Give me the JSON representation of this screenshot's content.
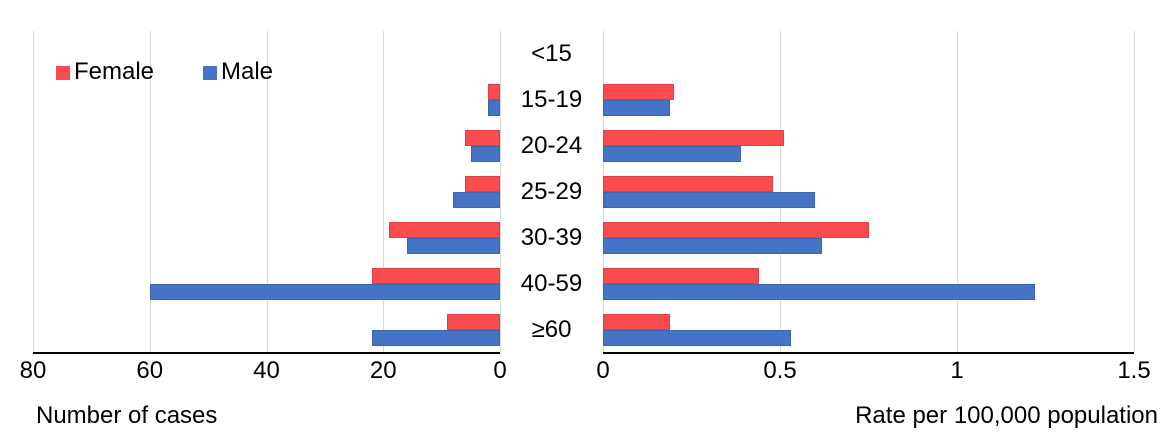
{
  "chart_data": {
    "type": "bar",
    "orientation": "horizontal",
    "title": "",
    "categories": [
      "<15",
      "15-19",
      "20-24",
      "25-29",
      "30-39",
      "40-59",
      "≥60"
    ],
    "legend": [
      {
        "name": "Female",
        "color": "#fa4b4e"
      },
      {
        "name": "Male",
        "color": "#4573c6"
      }
    ],
    "legend_position": "top-left",
    "grid": "vertical-only",
    "panels": [
      {
        "id": "cases",
        "xlabel": "Number of cases",
        "axis_direction": "reversed",
        "xlim": [
          0,
          80
        ],
        "ticks": [
          80,
          60,
          40,
          20,
          0
        ],
        "tick_labels": [
          "80",
          "60",
          "40",
          "20",
          "0"
        ],
        "series": [
          {
            "name": "Female",
            "values": [
              0,
              2,
              6,
              6,
              19,
              22,
              9
            ]
          },
          {
            "name": "Male",
            "values": [
              0,
              2,
              5,
              8,
              16,
              60,
              22
            ]
          }
        ]
      },
      {
        "id": "rate",
        "xlabel": "Rate per 100,000 population",
        "axis_direction": "normal",
        "xlim": [
          0,
          1.5
        ],
        "ticks": [
          0,
          0.5,
          1,
          1.5
        ],
        "tick_labels": [
          "0",
          "0.5",
          "1",
          "1.5"
        ],
        "series": [
          {
            "name": "Female",
            "values": [
              0,
              0.2,
              0.51,
              0.48,
              0.75,
              0.44,
              0.19
            ]
          },
          {
            "name": "Male",
            "values": [
              0,
              0.19,
              0.39,
              0.6,
              0.62,
              1.22,
              0.53
            ]
          }
        ]
      }
    ],
    "colors": {
      "female": "#fa4b4e",
      "male": "#4573c6",
      "gridline": "#d9d9d9",
      "axis": "#000000"
    }
  }
}
